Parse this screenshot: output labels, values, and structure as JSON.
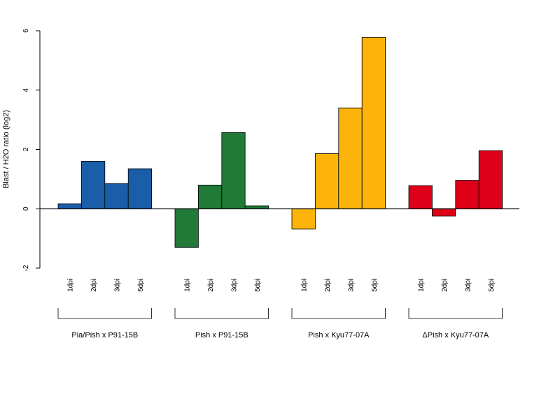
{
  "chart_data": {
    "type": "bar",
    "ylabel": "Blast / H2O ratio (log2)",
    "ylim": [
      -2,
      6
    ],
    "yticks": [
      -2,
      0,
      2,
      4,
      6
    ],
    "groups": [
      {
        "label": "Pia/Pish x P91-15B",
        "color": "#1a5da8",
        "categories": [
          "1dpi",
          "2dpi",
          "3dpi",
          "5dpi"
        ],
        "values": [
          0.17,
          1.6,
          0.85,
          1.35
        ]
      },
      {
        "label": "Pish x P91-15B",
        "color": "#217a38",
        "categories": [
          "1dpi",
          "2dpi",
          "3dpi",
          "5dpi"
        ],
        "values": [
          -1.3,
          0.8,
          2.57,
          0.1
        ]
      },
      {
        "label": "Pish x Kyu77-07A",
        "color": "#fdb40a",
        "categories": [
          "1dpi",
          "2dpi",
          "3dpi",
          "5dpi"
        ],
        "values": [
          -0.68,
          1.86,
          3.4,
          5.78
        ]
      },
      {
        "label": "ΔPish x Kyu77-07A",
        "color": "#dd0018",
        "categories": [
          "1dpi",
          "2dpi",
          "3dpi",
          "5dpi"
        ],
        "values": [
          0.78,
          -0.25,
          0.96,
          1.96
        ]
      }
    ]
  }
}
